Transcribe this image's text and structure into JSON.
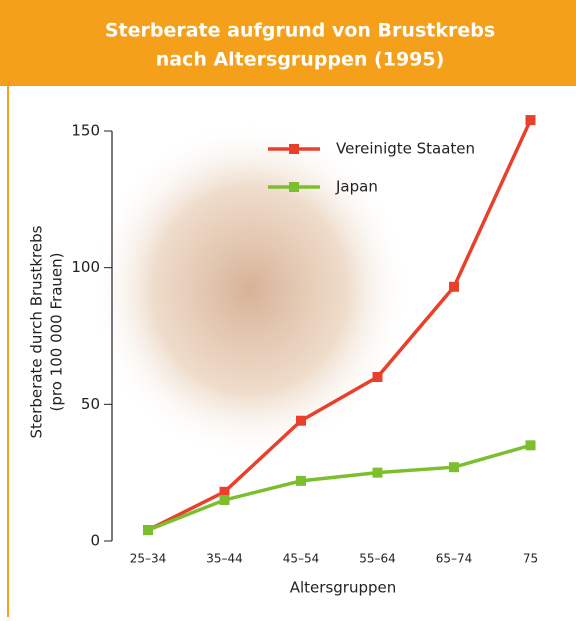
{
  "chart_data": {
    "type": "line",
    "title": [
      "Sterberate aufgrund von Brustkrebs",
      "nach Altersgruppen (1995)"
    ],
    "y_label": [
      "Sterberate durch Brustkrebs",
      "(pro 100 000 Frauen)"
    ],
    "x_label": "Altersgruppen",
    "categories": [
      "25–34",
      "35–44",
      "45–54",
      "55–64",
      "65–74",
      "75"
    ],
    "series": [
      {
        "name": "Vereinigte Staaten",
        "color": "#e8402a",
        "values": [
          4,
          18,
          44,
          60,
          93,
          154
        ]
      },
      {
        "name": "Japan",
        "color": "#7cbf2e",
        "values": [
          4,
          15,
          22,
          25,
          27,
          35
        ]
      }
    ],
    "ylim": [
      0,
      150
    ],
    "yticks": [
      0,
      50,
      100,
      150
    ],
    "legend": "top"
  }
}
